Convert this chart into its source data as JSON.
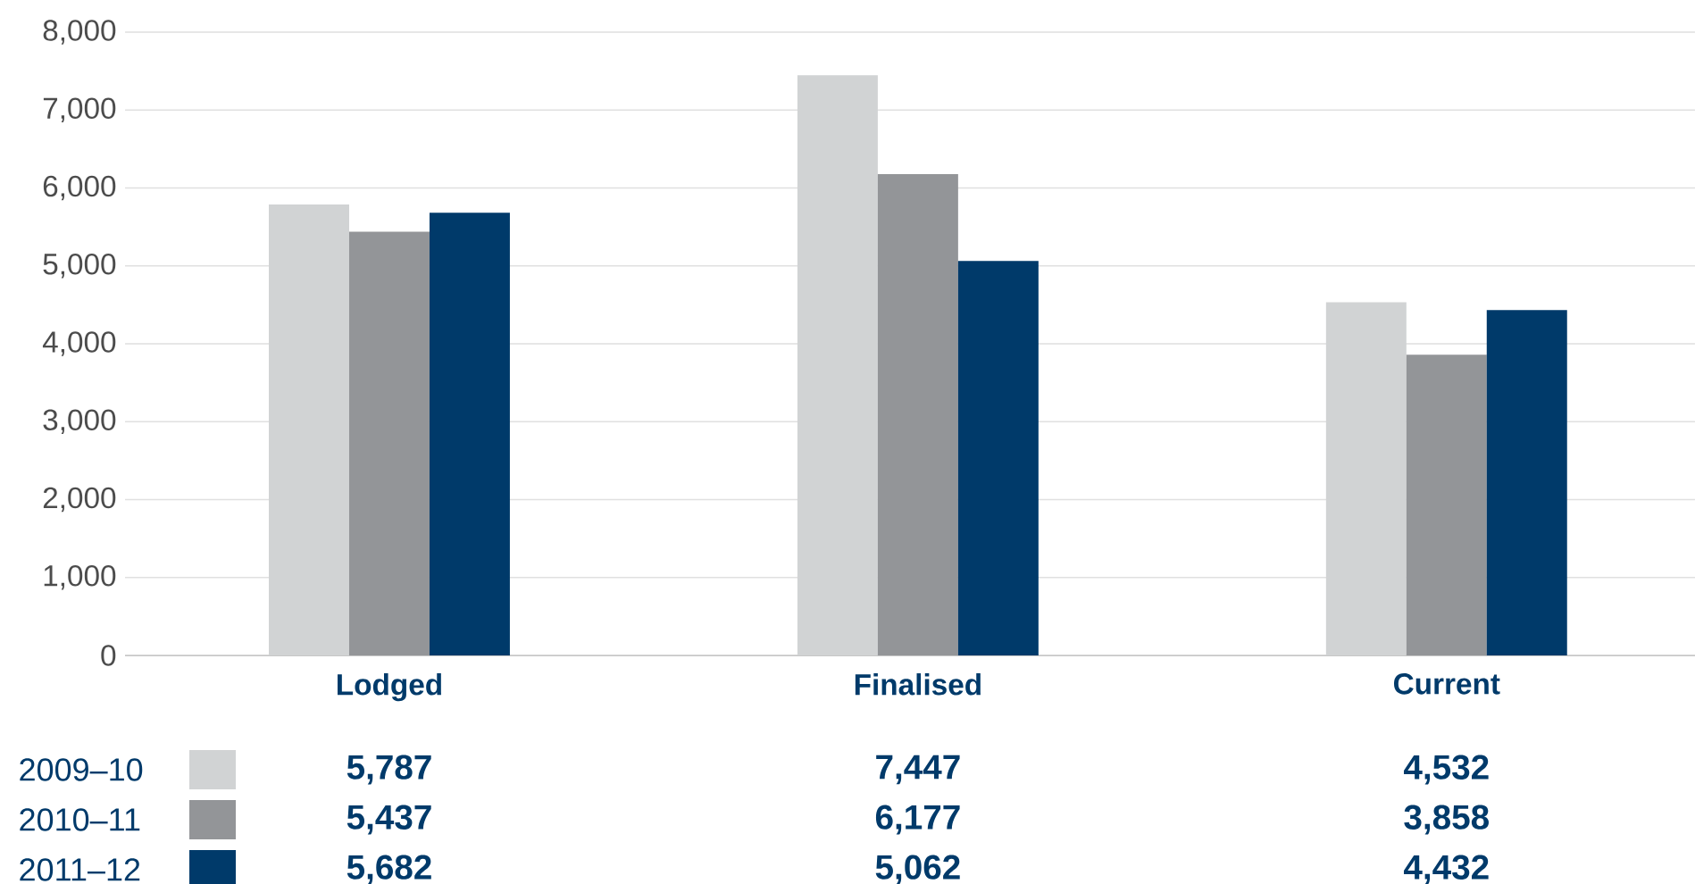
{
  "chart_data": {
    "type": "bar",
    "categories": [
      "Lodged",
      "Finalised",
      "Current"
    ],
    "series": [
      {
        "name": "2009–10",
        "color": "#d1d3d4",
        "values": [
          5787,
          7447,
          4532
        ],
        "value_labels": [
          "5,787",
          "7,447",
          "4,532"
        ]
      },
      {
        "name": "2010–11",
        "color": "#939598",
        "values": [
          5437,
          6177,
          3858
        ],
        "value_labels": [
          "5,437",
          "6,177",
          "3,858"
        ]
      },
      {
        "name": "2011–12",
        "color": "#003a6a",
        "values": [
          5682,
          5062,
          4432
        ],
        "value_labels": [
          "5,682",
          "5,062",
          "4,432"
        ]
      }
    ],
    "ylim": [
      0,
      8000
    ],
    "yticks": [
      0,
      {
        "value": 1000,
        "label": "1,000"
      },
      {
        "value": 2000,
        "label": "2,000"
      },
      {
        "value": 3000,
        "label": "3,000"
      },
      {
        "value": 4000,
        "label": "4,000"
      },
      {
        "value": 5000,
        "label": "5,000"
      },
      {
        "value": 6000,
        "label": "6,000"
      },
      {
        "value": 7000,
        "label": "7,000"
      },
      {
        "value": 8000,
        "label": "8,000"
      }
    ],
    "grid": "y",
    "legend": "bottom"
  }
}
